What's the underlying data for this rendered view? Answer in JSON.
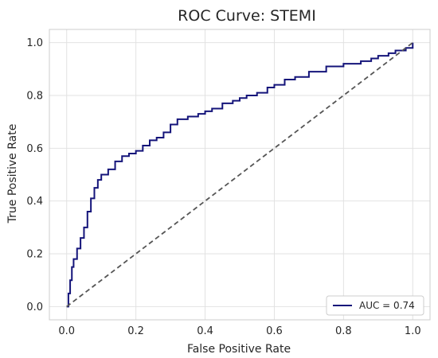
{
  "chart_data": {
    "type": "line",
    "title": "ROC Curve: STEMI",
    "xlabel": "False Positive Rate",
    "ylabel": "True Positive Rate",
    "xlim": [
      -0.05,
      1.05
    ],
    "ylim": [
      -0.05,
      1.05
    ],
    "xticks": [
      "0.0",
      "0.2",
      "0.4",
      "0.6",
      "0.8",
      "1.0"
    ],
    "yticks": [
      "0.0",
      "0.2",
      "0.4",
      "0.6",
      "0.8",
      "1.0"
    ],
    "grid": true,
    "legend": {
      "position": "lower-right",
      "entries": [
        "AUC = 0.74"
      ]
    },
    "series": [
      {
        "name": "AUC = 0.74",
        "color": "#14147a",
        "style": "solid",
        "x": [
          0.0,
          0.005,
          0.01,
          0.015,
          0.02,
          0.03,
          0.04,
          0.05,
          0.06,
          0.07,
          0.08,
          0.09,
          0.1,
          0.12,
          0.14,
          0.16,
          0.18,
          0.2,
          0.22,
          0.24,
          0.26,
          0.28,
          0.3,
          0.32,
          0.35,
          0.38,
          0.4,
          0.42,
          0.45,
          0.48,
          0.5,
          0.52,
          0.55,
          0.58,
          0.6,
          0.63,
          0.66,
          0.7,
          0.75,
          0.8,
          0.85,
          0.88,
          0.9,
          0.93,
          0.95,
          0.98,
          1.0
        ],
        "y": [
          0.0,
          0.05,
          0.1,
          0.15,
          0.18,
          0.22,
          0.26,
          0.3,
          0.36,
          0.41,
          0.45,
          0.48,
          0.5,
          0.52,
          0.55,
          0.57,
          0.58,
          0.59,
          0.61,
          0.63,
          0.64,
          0.66,
          0.69,
          0.71,
          0.72,
          0.73,
          0.74,
          0.75,
          0.77,
          0.78,
          0.79,
          0.8,
          0.81,
          0.83,
          0.84,
          0.86,
          0.87,
          0.89,
          0.91,
          0.92,
          0.93,
          0.94,
          0.95,
          0.96,
          0.97,
          0.98,
          1.0
        ]
      },
      {
        "name": "",
        "color": "#555555",
        "style": "dashed",
        "x": [
          0.0,
          1.0
        ],
        "y": [
          0.0,
          1.0
        ]
      }
    ]
  }
}
